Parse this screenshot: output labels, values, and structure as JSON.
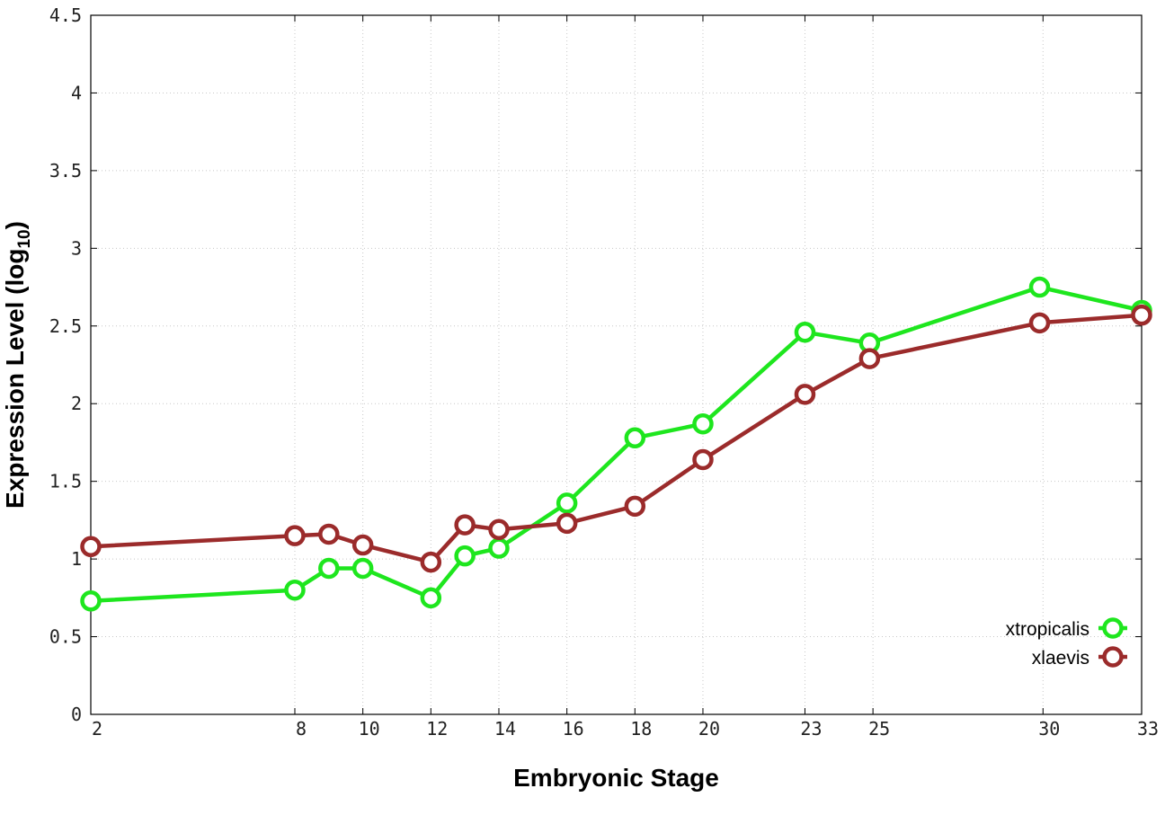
{
  "chart_data": {
    "type": "line",
    "xlabel": "Embryonic Stage",
    "ylabel_main": "Expression Level (log",
    "ylabel_sub": "10",
    "ylabel_close": ")",
    "x_ticks": [
      2,
      8,
      10,
      12,
      14,
      16,
      18,
      20,
      23,
      25,
      30,
      33
    ],
    "y_ticks": [
      "0",
      "0.5",
      "1",
      "1.5",
      "2",
      "2.5",
      "3",
      "3.5",
      "4",
      "4.5"
    ],
    "ylim": [
      0,
      4.5
    ],
    "grid": true,
    "legend_position": "bottom-right",
    "series": [
      {
        "name": "xtropicalis",
        "color": "#1ee61e",
        "marker": "open-circle",
        "points": [
          [
            1.9,
            0.73
          ],
          [
            7.9,
            0.8
          ],
          [
            8.9,
            0.94
          ],
          [
            9.9,
            0.94
          ],
          [
            11.9,
            0.75
          ],
          [
            12.9,
            1.02
          ],
          [
            13.9,
            1.07
          ],
          [
            15.9,
            1.36
          ],
          [
            17.9,
            1.78
          ],
          [
            19.9,
            1.87
          ],
          [
            22.9,
            2.46
          ],
          [
            24.8,
            2.39
          ],
          [
            29.8,
            2.75
          ],
          [
            32.8,
            2.6
          ]
        ]
      },
      {
        "name": "xlaevis",
        "color": "#9b2b2b",
        "marker": "open-circle",
        "points": [
          [
            1.9,
            1.08
          ],
          [
            7.9,
            1.15
          ],
          [
            8.9,
            1.16
          ],
          [
            9.9,
            1.09
          ],
          [
            11.9,
            0.98
          ],
          [
            12.9,
            1.22
          ],
          [
            13.9,
            1.19
          ],
          [
            15.9,
            1.23
          ],
          [
            17.9,
            1.34
          ],
          [
            19.9,
            1.64
          ],
          [
            22.9,
            2.06
          ],
          [
            24.8,
            2.29
          ],
          [
            29.8,
            2.52
          ],
          [
            32.8,
            2.57
          ]
        ]
      }
    ]
  }
}
